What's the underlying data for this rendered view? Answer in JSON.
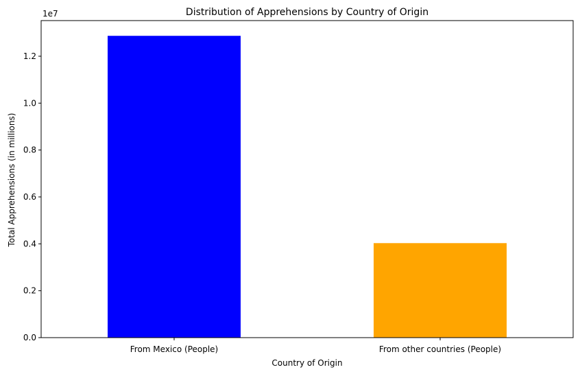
{
  "chart_data": {
    "type": "bar",
    "title": "Distribution of Apprehensions by Country of Origin",
    "xlabel": "Country of Origin",
    "ylabel": "Total Apprehensions (in millions)",
    "y_offset_label": "1e7",
    "categories": [
      "From Mexico (People)",
      "From other countries (People)"
    ],
    "values": [
      12870000,
      4030000
    ],
    "colors": [
      "#0000ff",
      "#ffa500"
    ],
    "ylim": [
      0,
      13520000
    ],
    "y_ticks": [
      0,
      2000000,
      4000000,
      6000000,
      8000000,
      10000000,
      12000000
    ],
    "y_tick_labels": [
      "0.0",
      "0.2",
      "0.4",
      "0.6",
      "0.8",
      "1.0",
      "1.2"
    ],
    "grid": false,
    "legend": false
  }
}
